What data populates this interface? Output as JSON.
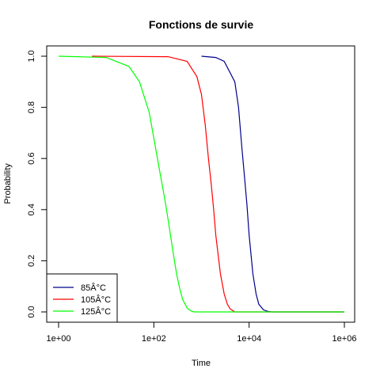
{
  "chart_data": {
    "type": "line",
    "title": "Fonctions de survie",
    "xlabel": "Time",
    "ylabel": "Probability",
    "x_scale": "log10",
    "xlim": [
      1,
      1000000
    ],
    "ylim": [
      0,
      1
    ],
    "x_ticks": [
      {
        "value": 1,
        "label": "1e+00"
      },
      {
        "value": 100,
        "label": "1e+02"
      },
      {
        "value": 10000,
        "label": "1e+04"
      },
      {
        "value": 1000000,
        "label": "1e+06"
      }
    ],
    "y_ticks": [
      {
        "value": 0.0,
        "label": "0.0"
      },
      {
        "value": 0.2,
        "label": "0.2"
      },
      {
        "value": 0.4,
        "label": "0.4"
      },
      {
        "value": 0.6,
        "label": "0.6"
      },
      {
        "value": 0.8,
        "label": "0.8"
      },
      {
        "value": 1.0,
        "label": "1.0"
      }
    ],
    "grid": false,
    "legend_position": "bottom-left",
    "series": [
      {
        "name": "85Â°C",
        "color": "#00008b",
        "points": [
          {
            "x": 1000,
            "y": 1.0
          },
          {
            "x": 2000,
            "y": 0.995
          },
          {
            "x": 3000,
            "y": 0.98
          },
          {
            "x": 5000,
            "y": 0.9
          },
          {
            "x": 6000,
            "y": 0.8
          },
          {
            "x": 7000,
            "y": 0.65
          },
          {
            "x": 8000,
            "y": 0.53
          },
          {
            "x": 9000,
            "y": 0.42
          },
          {
            "x": 10000,
            "y": 0.3
          },
          {
            "x": 12000,
            "y": 0.15
          },
          {
            "x": 14000,
            "y": 0.07
          },
          {
            "x": 16000,
            "y": 0.03
          },
          {
            "x": 20000,
            "y": 0.008
          },
          {
            "x": 25000,
            "y": 0.002
          },
          {
            "x": 30000,
            "y": 0.0
          },
          {
            "x": 1000000,
            "y": 0.0
          }
        ]
      },
      {
        "name": "105Â°C",
        "color": "#ff0000",
        "points": [
          {
            "x": 5,
            "y": 1.0
          },
          {
            "x": 200,
            "y": 0.998
          },
          {
            "x": 500,
            "y": 0.98
          },
          {
            "x": 800,
            "y": 0.92
          },
          {
            "x": 1000,
            "y": 0.85
          },
          {
            "x": 1200,
            "y": 0.73
          },
          {
            "x": 1400,
            "y": 0.6
          },
          {
            "x": 1600,
            "y": 0.5
          },
          {
            "x": 1800,
            "y": 0.4
          },
          {
            "x": 2000,
            "y": 0.3
          },
          {
            "x": 2500,
            "y": 0.15
          },
          {
            "x": 3000,
            "y": 0.07
          },
          {
            "x": 3500,
            "y": 0.03
          },
          {
            "x": 4000,
            "y": 0.012
          },
          {
            "x": 5000,
            "y": 0.0
          },
          {
            "x": 1000000,
            "y": 0.0
          }
        ]
      },
      {
        "name": "125Â°C",
        "color": "#00ff00",
        "points": [
          {
            "x": 1,
            "y": 1.0
          },
          {
            "x": 10,
            "y": 0.995
          },
          {
            "x": 30,
            "y": 0.96
          },
          {
            "x": 50,
            "y": 0.9
          },
          {
            "x": 80,
            "y": 0.78
          },
          {
            "x": 100,
            "y": 0.68
          },
          {
            "x": 130,
            "y": 0.56
          },
          {
            "x": 170,
            "y": 0.44
          },
          {
            "x": 200,
            "y": 0.36
          },
          {
            "x": 250,
            "y": 0.24
          },
          {
            "x": 300,
            "y": 0.15
          },
          {
            "x": 350,
            "y": 0.09
          },
          {
            "x": 400,
            "y": 0.05
          },
          {
            "x": 500,
            "y": 0.015
          },
          {
            "x": 600,
            "y": 0.004
          },
          {
            "x": 700,
            "y": 0.0
          },
          {
            "x": 1000000,
            "y": 0.0
          }
        ]
      }
    ]
  }
}
